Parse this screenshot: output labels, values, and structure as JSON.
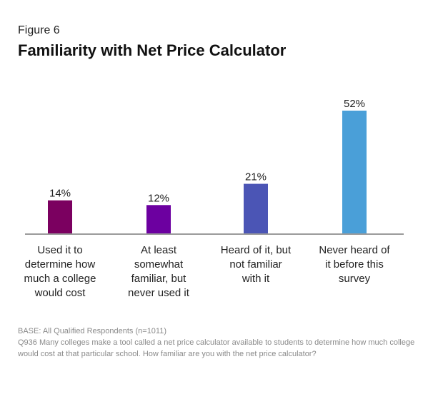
{
  "figure_label": "Figure 6",
  "title": "Familiarity with Net Price Calculator",
  "chart_data": {
    "type": "bar",
    "categories": [
      "Used it to\ndetermine how\nmuch a college\nwould cost",
      "At least\nsomewhat\nfamiliar, but\nnever used it",
      "Heard of it, but\nnot familiar\nwith it",
      "Never heard of\nit before this\nsurvey"
    ],
    "values": [
      14,
      12,
      21,
      52
    ],
    "data_labels": [
      "14%",
      "12%",
      "21%",
      "52%"
    ],
    "colors": [
      "#7b0060",
      "#6c00a0",
      "#4b55b5",
      "#4a9fd8"
    ],
    "ylim": [
      0,
      52
    ],
    "grid": false,
    "xlabel": "",
    "ylabel": ""
  },
  "footnote": {
    "base": "BASE:   All Qualified Respondents (n=1011)",
    "question": "Q936  Many colleges make a tool called a net price calculator available to students to determine how much college would cost at that particular school.  How familiar are you with the net price calculator?"
  }
}
